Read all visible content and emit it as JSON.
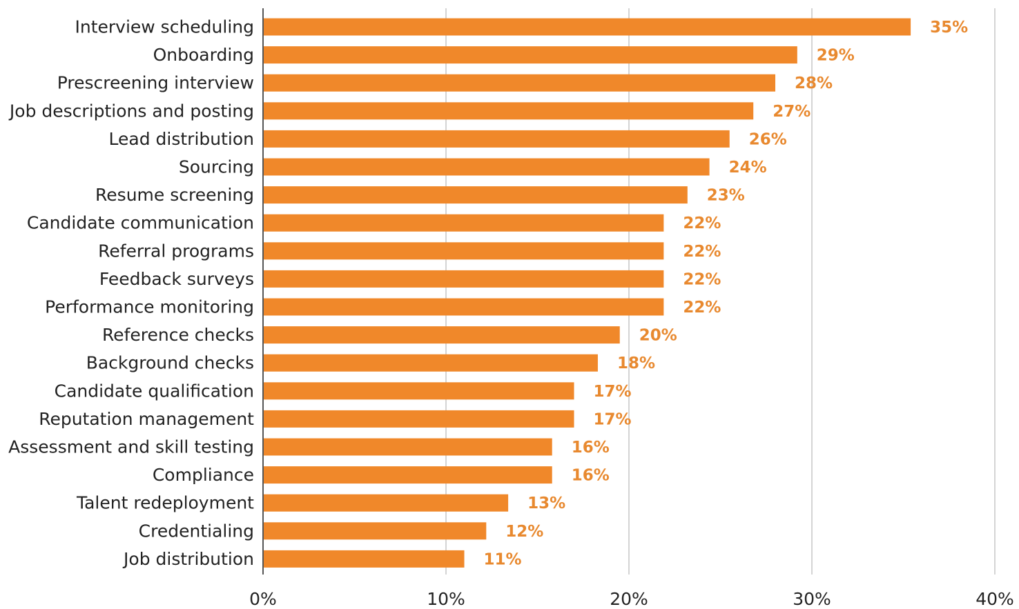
{
  "chart_data": {
    "type": "bar",
    "orientation": "horizontal",
    "categories": [
      "Interview scheduling",
      "Onboarding",
      "Prescreening interview",
      "Job descriptions and posting",
      "Lead distribution",
      "Sourcing",
      "Resume screening",
      "Candidate communication",
      "Referral programs",
      "Feedback surveys",
      "Performance monitoring",
      "Reference checks",
      "Background checks",
      "Candidate qualification",
      "Reputation management",
      "Assessment and skill testing",
      "Compliance",
      "Talent redeployment",
      "Credentialing",
      "Job distribution"
    ],
    "values": [
      35.4,
      29.2,
      28.0,
      26.8,
      25.5,
      24.4,
      23.2,
      21.9,
      21.9,
      21.9,
      21.9,
      19.5,
      18.3,
      17.0,
      17.0,
      15.8,
      15.8,
      13.4,
      12.2,
      11.0
    ],
    "value_labels": [
      "35%",
      "29%",
      "28%",
      "27%",
      "26%",
      "24%",
      "23%",
      "22%",
      "22%",
      "22%",
      "22%",
      "20%",
      "18%",
      "17%",
      "17%",
      "16%",
      "16%",
      "13%",
      "12%",
      "11%"
    ],
    "xlim": [
      0,
      40
    ],
    "x_ticks": [
      0,
      10,
      20,
      30,
      40
    ],
    "x_tick_labels": [
      "0%",
      "10%",
      "20%",
      "30%",
      "40%"
    ],
    "grid": "vertical",
    "legend": "none",
    "title": "",
    "xlabel": "",
    "ylabel": "",
    "colors": {
      "bar": "#f0882a",
      "value_label": "#e8892f",
      "grid": "#d4d4d4",
      "axis": "#555555"
    }
  }
}
